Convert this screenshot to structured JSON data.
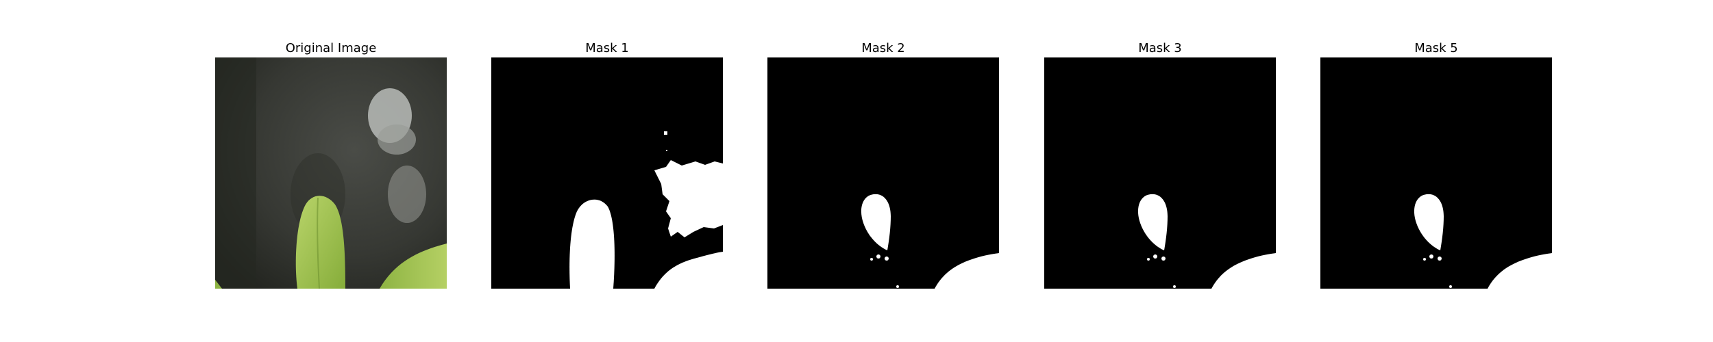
{
  "panels": [
    {
      "title": "Original Image",
      "kind": "photo"
    },
    {
      "title": "Mask 1",
      "kind": "mask"
    },
    {
      "title": "Mask 2",
      "kind": "mask"
    },
    {
      "title": "Mask 3",
      "kind": "mask"
    },
    {
      "title": "Mask 5",
      "kind": "mask"
    }
  ],
  "colors": {
    "background": "#ffffff",
    "mask_background": "#000000",
    "mask_foreground": "#ffffff",
    "leaf": "#9fc24f",
    "rock_dark": "#3f403b",
    "rock_light": "#b9bcb8"
  }
}
